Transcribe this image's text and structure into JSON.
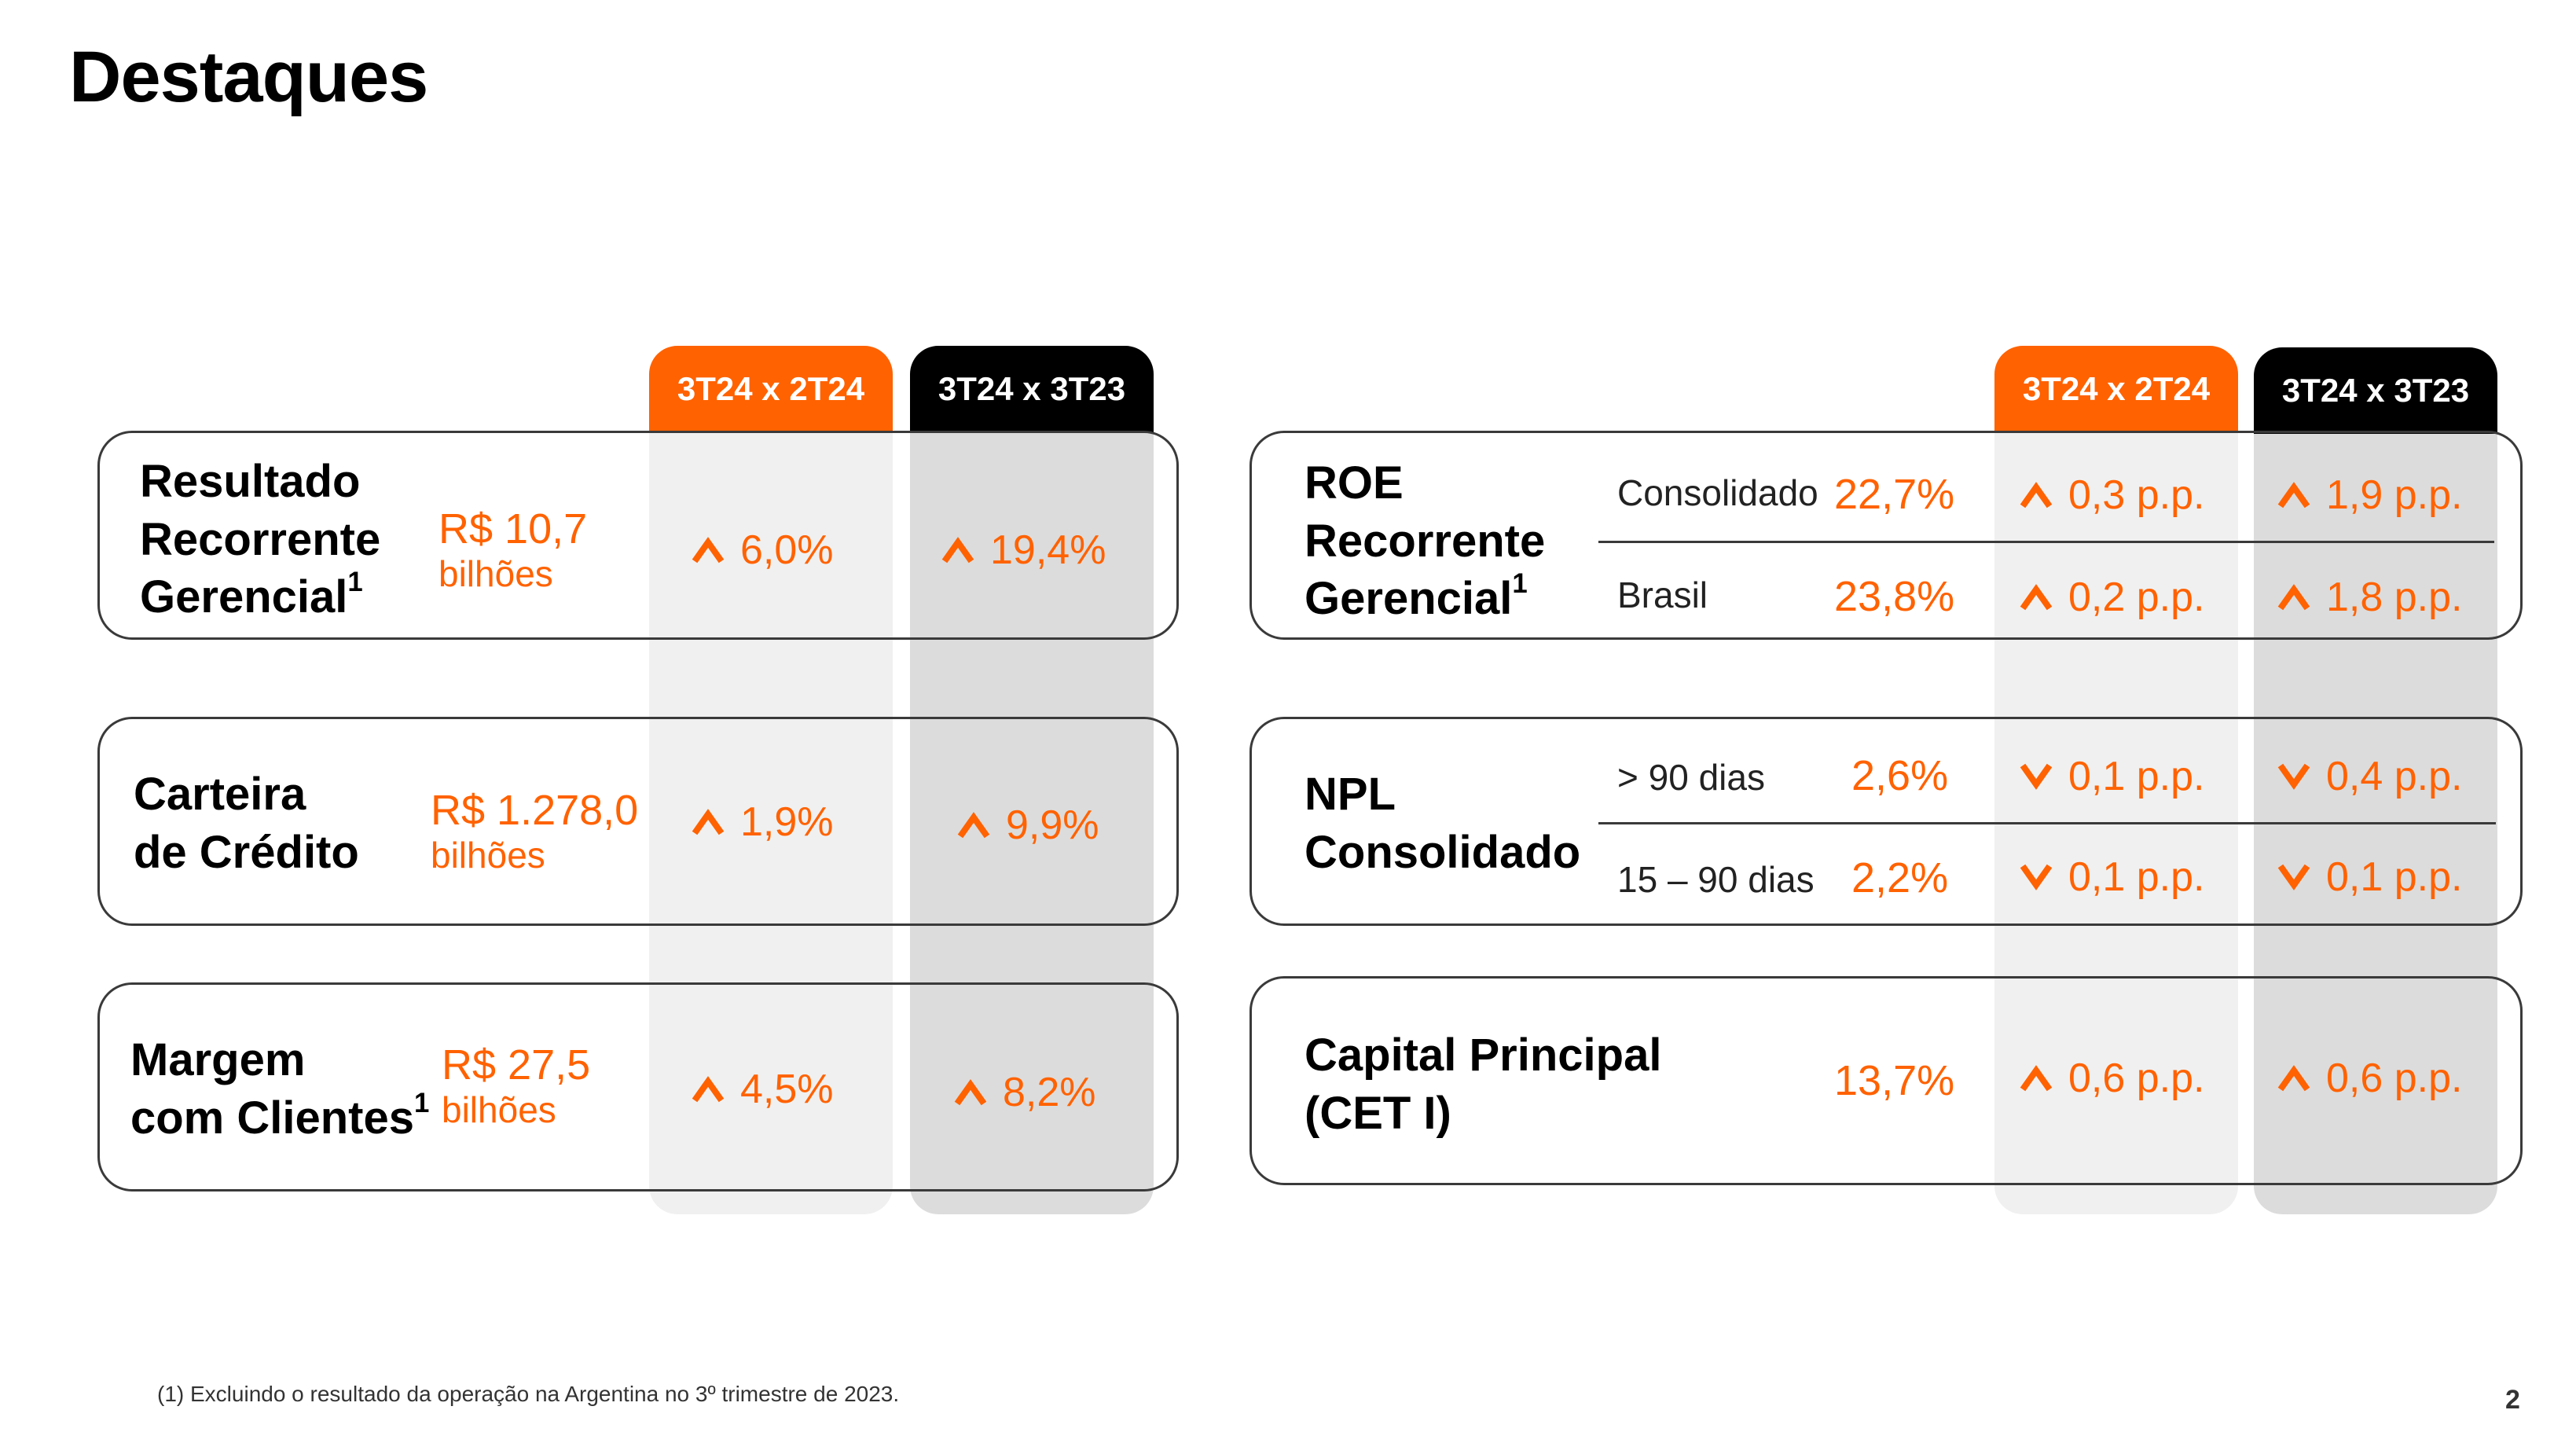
{
  "page": {
    "title": "Destaques",
    "footnote": "(1) Excluindo o resultado da operação na Argentina no 3º trimestre de 2023.",
    "page_number": "2"
  },
  "colors": {
    "accent": "#ff6200",
    "dark": "#000000"
  },
  "headers": {
    "qoq": "3T24 x 2T24",
    "yoy": "3T24 x 3T23"
  },
  "left": {
    "resultado": {
      "label_line1": "Resultado",
      "label_line2": "Recorrente",
      "label_line3": "Gerencial",
      "label_sup": "1",
      "value": "R$ 10,7",
      "unit": "bilhões",
      "qoq": "6,0%",
      "yoy": "19,4%"
    },
    "carteira": {
      "label_line1": "Carteira",
      "label_line2": "de Crédito",
      "value": "R$ 1.278,0",
      "unit": "bilhões",
      "qoq": "1,9%",
      "yoy": "9,9%"
    },
    "margem": {
      "label_line1": "Margem",
      "label_line2": "com Clientes",
      "label_sup": "1",
      "value": "R$ 27,5",
      "unit": "bilhões",
      "qoq": "4,5%",
      "yoy": "8,2%"
    }
  },
  "right": {
    "roe": {
      "label_line1": "ROE",
      "label_line2": "Recorrente",
      "label_line3": "Gerencial",
      "label_sup": "1",
      "rows": [
        {
          "name": "Consolidado",
          "value": "22,7%",
          "qoq": "0,3 p.p.",
          "qoq_dir": "up",
          "yoy": "1,9 p.p.",
          "yoy_dir": "up"
        },
        {
          "name": "Brasil",
          "value": "23,8%",
          "qoq": "0,2 p.p.",
          "qoq_dir": "up",
          "yoy": "1,8 p.p.",
          "yoy_dir": "up"
        }
      ]
    },
    "npl": {
      "label_line1": "NPL",
      "label_line2": "Consolidado",
      "rows": [
        {
          "name": "> 90 dias",
          "value": "2,6%",
          "qoq": "0,1 p.p.",
          "qoq_dir": "down",
          "yoy": "0,4 p.p.",
          "yoy_dir": "down"
        },
        {
          "name": "15 – 90 dias",
          "value": "2,2%",
          "qoq": "0,1 p.p.",
          "qoq_dir": "down",
          "yoy": "0,1 p.p.",
          "yoy_dir": "down"
        }
      ]
    },
    "cet": {
      "label_line1": "Capital Principal",
      "label_line2": "(CET I)",
      "value": "13,7%",
      "qoq": "0,6 p.p.",
      "yoy": "0,6 p.p."
    }
  }
}
